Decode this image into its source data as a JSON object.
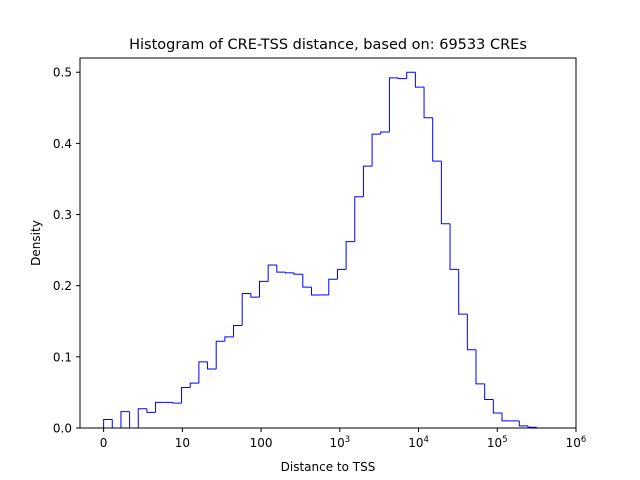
{
  "chart_data": {
    "type": "histogram",
    "title": "Histogram of CRE-TSS distance, based on: 69533 CREs",
    "xlabel": "Distance to TSS",
    "ylabel": "Density",
    "xscale": "symlog",
    "xlim": [
      -0.3,
      6.0
    ],
    "ylim": [
      0.0,
      0.52
    ],
    "grid": false,
    "line_color": "#0000ff",
    "x_ticks": [
      {
        "pos": 0,
        "label": "0"
      },
      {
        "pos": 1,
        "label": "10"
      },
      {
        "pos": 2,
        "label": "100"
      },
      {
        "pos": 3,
        "base": "10",
        "exp": "3"
      },
      {
        "pos": 4,
        "base": "10",
        "exp": "4"
      },
      {
        "pos": 5,
        "base": "10",
        "exp": "5"
      },
      {
        "pos": 6,
        "base": "10",
        "exp": "6"
      }
    ],
    "y_ticks": [
      "0.0",
      "0.1",
      "0.2",
      "0.3",
      "0.4",
      "0.5"
    ],
    "bin_edges": [
      0.0,
      0.11,
      0.22,
      0.33,
      0.44,
      0.55,
      0.66,
      0.77,
      0.88,
      0.99,
      1.1,
      1.21,
      1.32,
      1.43,
      1.54,
      1.65,
      1.76,
      1.87,
      1.98,
      2.09,
      2.2,
      2.31,
      2.42,
      2.53,
      2.64,
      2.75,
      2.86,
      2.97,
      3.08,
      3.19,
      3.3,
      3.41,
      3.52,
      3.63,
      3.74,
      3.85,
      3.96,
      4.07,
      4.18,
      4.29,
      4.4,
      4.51,
      4.62,
      4.73,
      4.84,
      4.95,
      5.06,
      5.17,
      5.28,
      5.39,
      5.5,
      5.61
    ],
    "values": [
      0.012,
      0.0,
      0.023,
      0.0,
      0.027,
      0.022,
      0.036,
      0.036,
      0.035,
      0.057,
      0.063,
      0.093,
      0.083,
      0.122,
      0.128,
      0.144,
      0.189,
      0.184,
      0.206,
      0.229,
      0.219,
      0.218,
      0.216,
      0.198,
      0.187,
      0.187,
      0.209,
      0.223,
      0.262,
      0.325,
      0.368,
      0.413,
      0.416,
      0.492,
      0.491,
      0.5,
      0.479,
      0.436,
      0.375,
      0.287,
      0.223,
      0.16,
      0.11,
      0.062,
      0.04,
      0.021,
      0.01,
      0.01,
      0.003,
      0.001,
      0.0
    ]
  }
}
